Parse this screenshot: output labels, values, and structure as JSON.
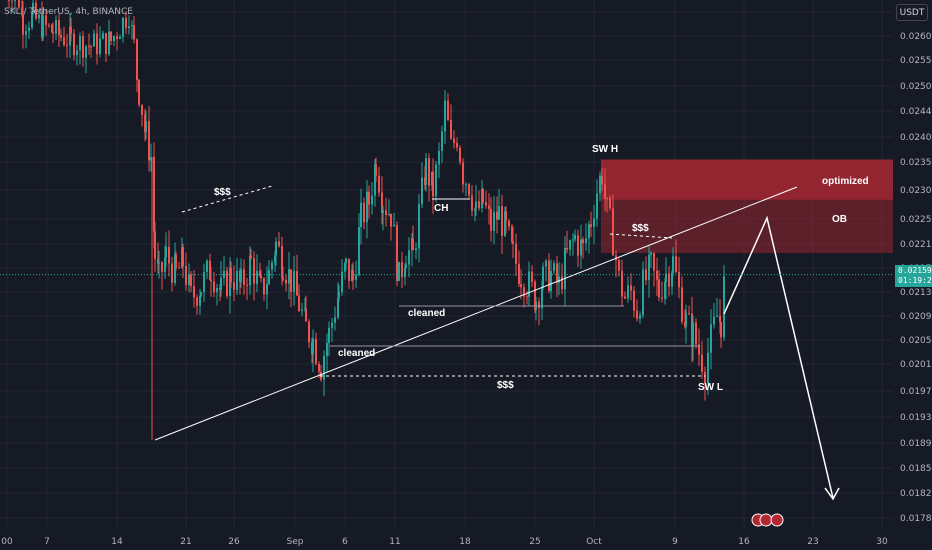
{
  "header": {
    "symbol_title": "SKL / TetherUS, 4h, BINANCE",
    "currency": "USDT"
  },
  "last_price": {
    "value": "0.02159",
    "countdown": "01:19:28"
  },
  "colors": {
    "background": "#161a25",
    "up": "#26a69a",
    "down": "#ef5350",
    "zone": "#b22833",
    "line": "#ffffff"
  },
  "chart_data": {
    "type": "candlestick",
    "y_axis": {
      "ticks": [
        0.0265,
        0.026,
        0.0255,
        0.025,
        0.0244,
        0.024,
        0.0235,
        0.023,
        0.0225,
        0.0221,
        0.0217,
        0.0213,
        0.0209,
        0.0205,
        0.0201,
        0.0197,
        0.0193,
        0.0189,
        0.01855,
        0.0182,
        0.01785
      ],
      "tick_labels": [
        "",
        "0.02600",
        "0.02550",
        "0.02500",
        "0.02440",
        "0.02400",
        "0.02350",
        "0.02300",
        "0.02250",
        "0.02210",
        "0.02170",
        "0.02130",
        "0.02090",
        "0.02050",
        "0.02010",
        "0.01970",
        "0.01930",
        "0.01890",
        "0.01855",
        "0.01820",
        "0.01785"
      ]
    },
    "x_axis": {
      "tick_labels": [
        "00",
        "7",
        "14",
        "21",
        "26",
        "Sep",
        "6",
        "11",
        "18",
        "25",
        "Oct",
        "9",
        "16",
        "23",
        "30"
      ]
    },
    "annotations": {
      "liq_top": "$$$",
      "ch": "CH",
      "sw_h": "SW H",
      "liq_right": "$$$",
      "optimized": "optimized",
      "ob": "OB",
      "cleaned_1": "cleaned",
      "cleaned_2": "cleaned",
      "liq_bottom": "$$$",
      "sw_l": "SW L"
    }
  }
}
